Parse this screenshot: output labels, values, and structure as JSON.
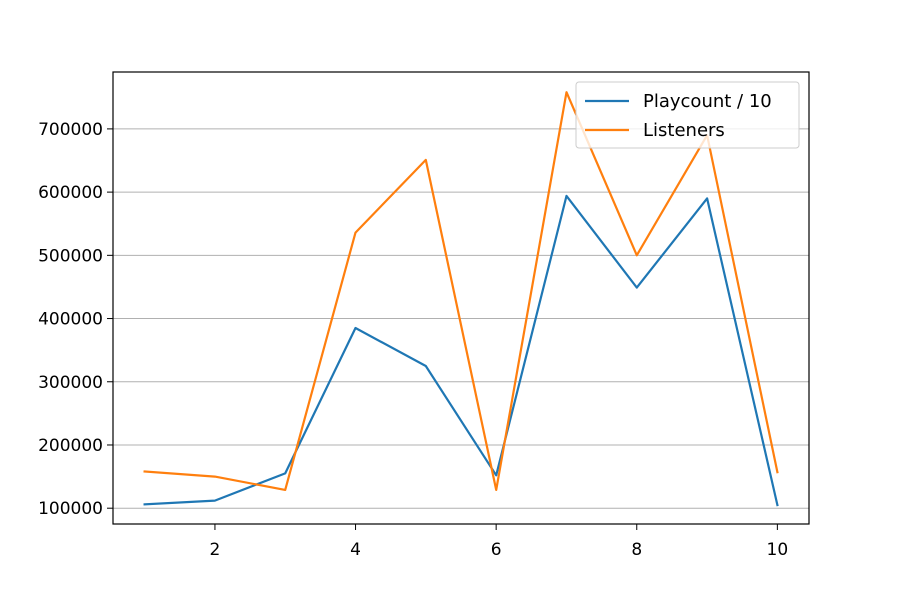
{
  "chart_data": {
    "type": "line",
    "title": "",
    "xlabel": "",
    "ylabel": "",
    "x": [
      1,
      2,
      3,
      4,
      5,
      6,
      7,
      8,
      9,
      10
    ],
    "xlim": [
      0.55,
      10.45
    ],
    "ylim": [
      75000,
      790000
    ],
    "xticks": [
      2,
      4,
      6,
      8,
      10
    ],
    "yticks": [
      100000,
      200000,
      300000,
      400000,
      500000,
      600000,
      700000
    ],
    "grid": "y-major",
    "legend_position": "top-right",
    "series": [
      {
        "name": "Playcount / 10",
        "color": "#1f77b4",
        "values": [
          106000,
          112000,
          155000,
          385000,
          325000,
          152000,
          594000,
          449000,
          590000,
          105000
        ]
      },
      {
        "name": "Listeners",
        "color": "#ff7f0e",
        "values": [
          158000,
          150000,
          129000,
          536000,
          651000,
          129000,
          758000,
          500000,
          690000,
          157000
        ]
      }
    ]
  }
}
